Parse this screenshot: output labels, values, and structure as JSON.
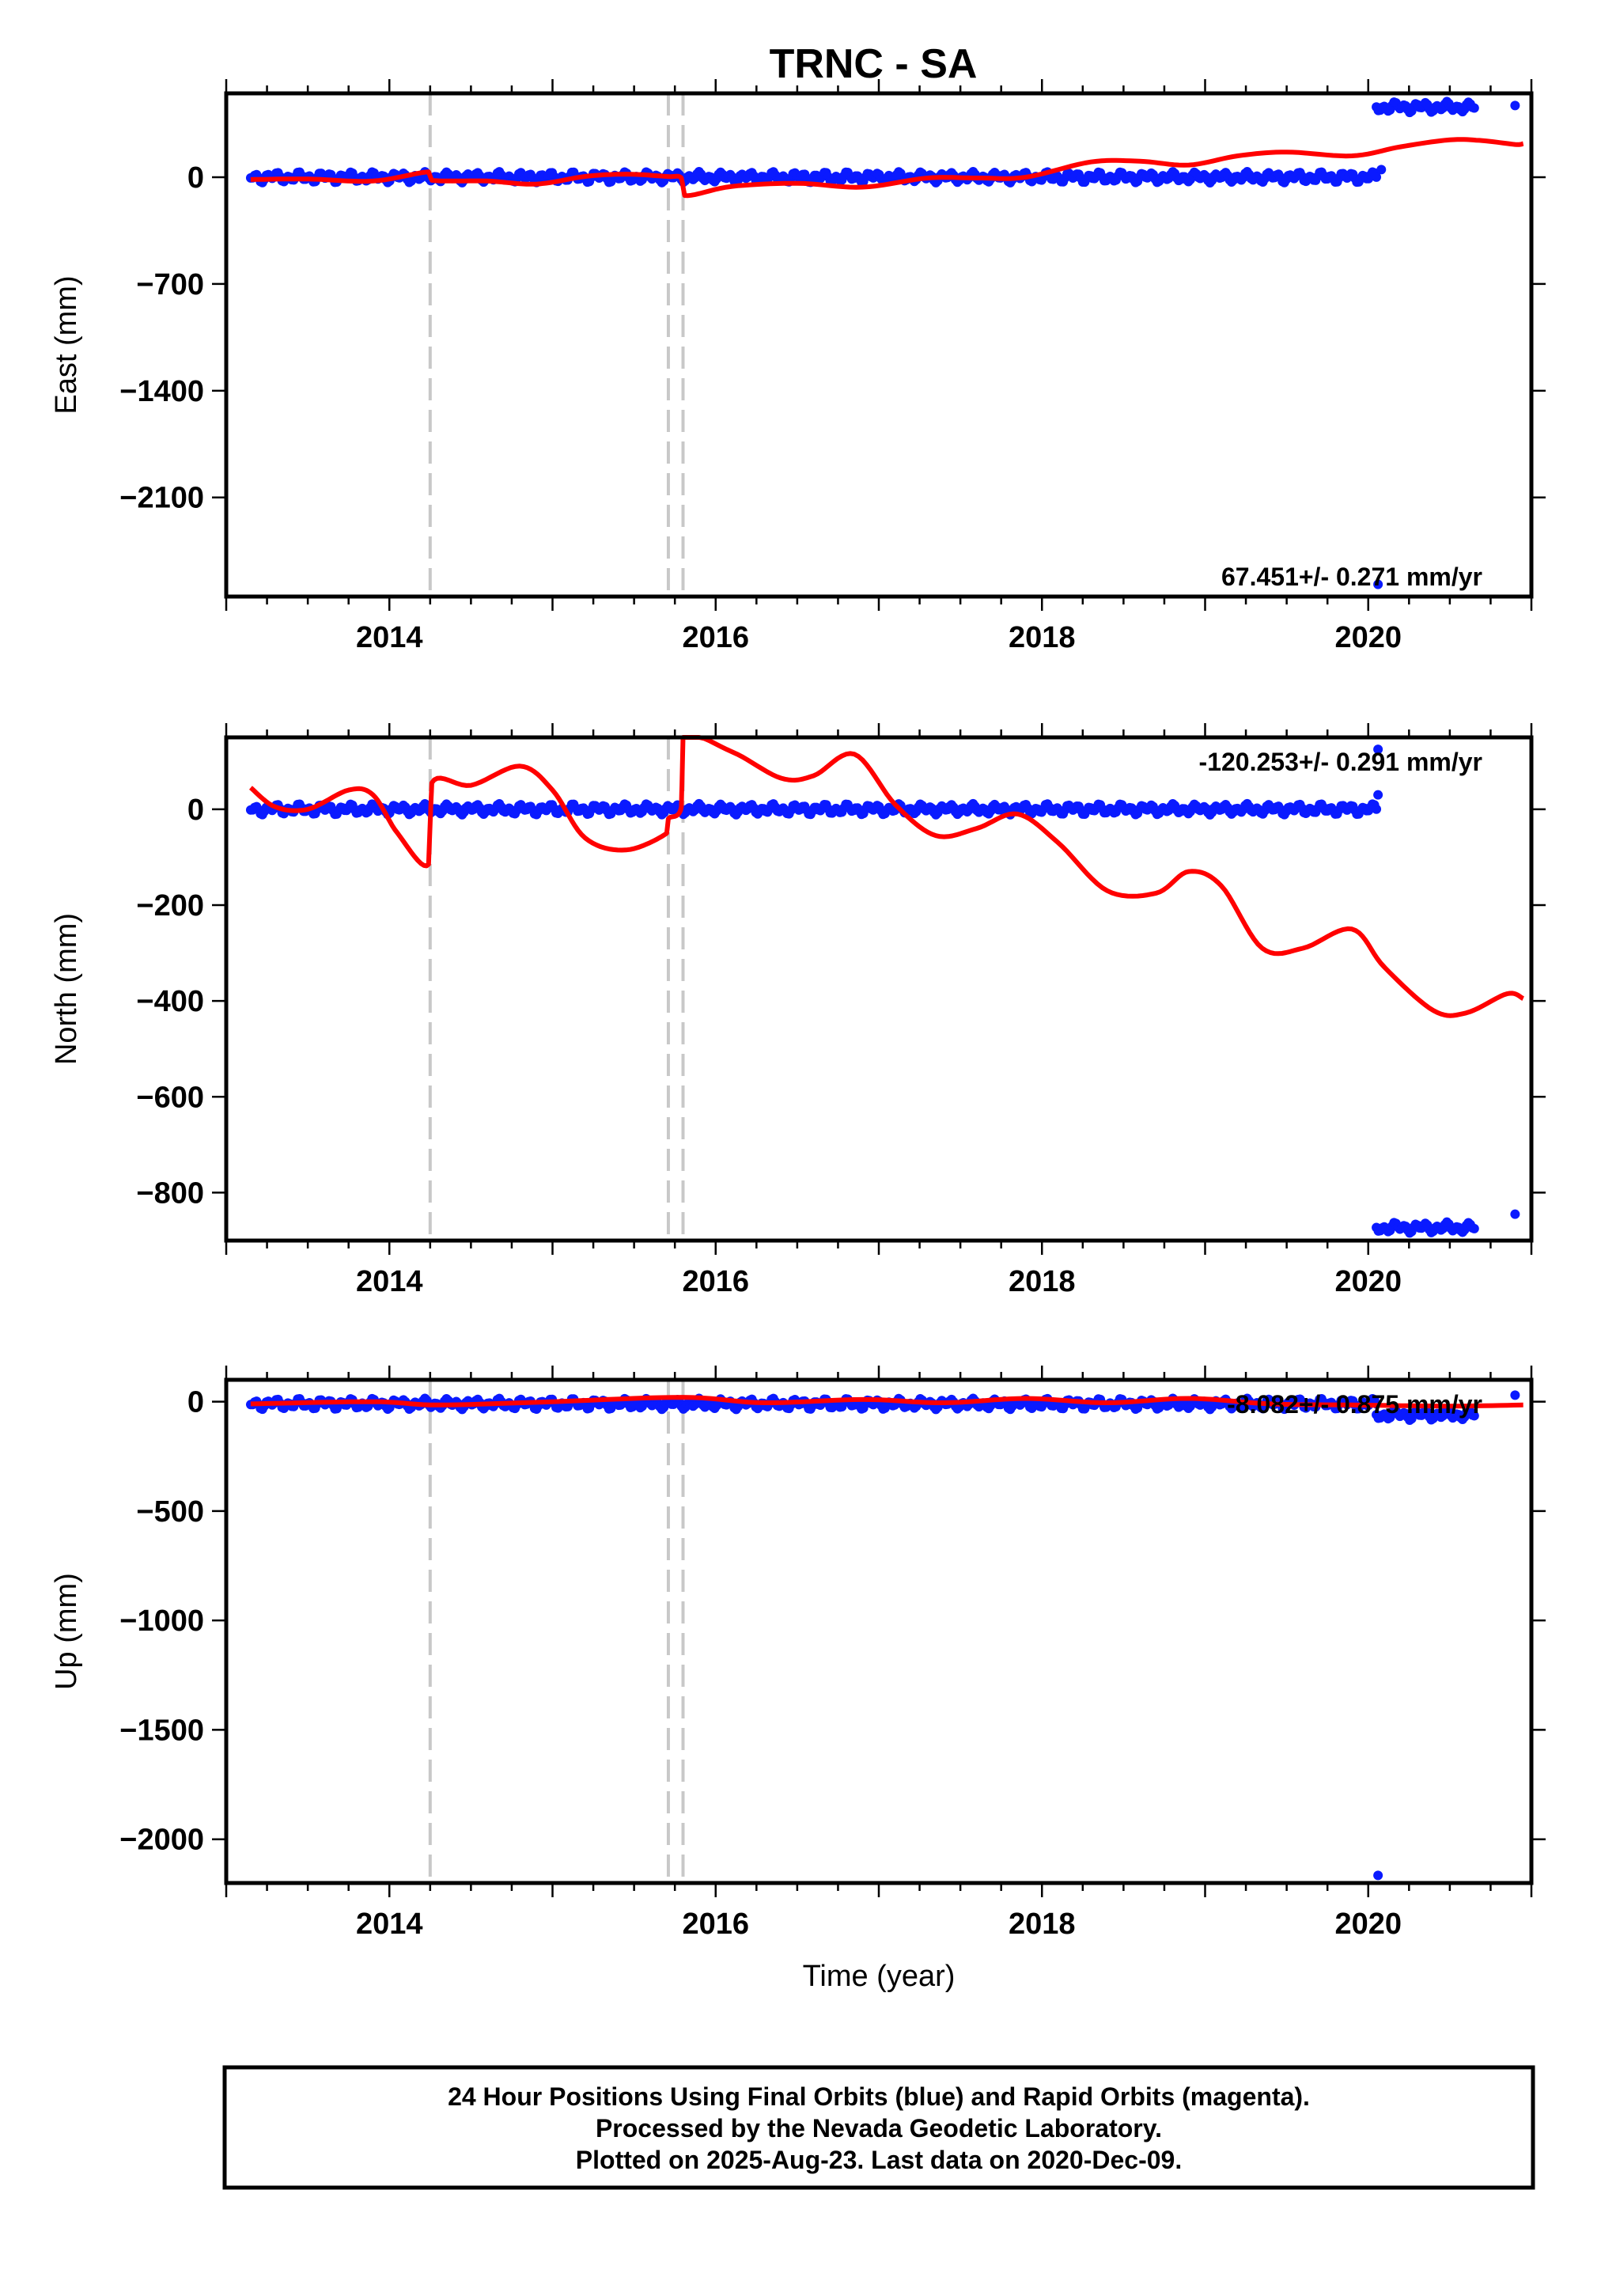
{
  "title": "TRNC - SA",
  "footer": {
    "line1": "24 Hour Positions Using Final Orbits (blue) and Rapid Orbits (magenta).",
    "line2": "Processed by the Nevada Geodetic Laboratory.",
    "line3": "Plotted on 2025-Aug-23. Last data on 2020-Dec-09."
  },
  "colors": {
    "data": "#0a1aff",
    "model": "#ff0000",
    "offset_lines": "#c8c8c8",
    "frame": "#000000"
  },
  "chart_data": [
    {
      "type": "scatter",
      "ylabel": "East (mm)",
      "xlabel": "",
      "xlim": [
        2013.0,
        2021.0
      ],
      "ylim": [
        -2750,
        550
      ],
      "xticks": [
        2014,
        2016,
        2018,
        2020
      ],
      "yticks": [
        0,
        -700,
        -1400,
        -2100
      ],
      "rate_label": "67.451+/- 0.271 mm/yr",
      "offsets": [
        2014.25,
        2015.71,
        2015.8
      ],
      "data_segments": [
        {
          "x0": 2013.15,
          "x1": 2020.05,
          "y": 0,
          "note": ""
        },
        {
          "x0": 2020.05,
          "x1": 2020.65,
          "y": 460,
          "note": ""
        }
      ],
      "data_points": [
        [
          2020.08,
          50
        ],
        [
          2020.9,
          470
        ],
        [
          2020.06,
          -2670
        ]
      ],
      "model": [
        [
          2013.15,
          -15
        ],
        [
          2013.5,
          -12
        ],
        [
          2013.9,
          -25
        ],
        [
          2014.24,
          35
        ],
        [
          2014.26,
          -20
        ],
        [
          2014.6,
          -25
        ],
        [
          2014.9,
          -45
        ],
        [
          2015.2,
          5
        ],
        [
          2015.45,
          20
        ],
        [
          2015.7,
          5
        ],
        [
          2015.79,
          -5
        ],
        [
          2015.81,
          -120
        ],
        [
          2016.1,
          -60
        ],
        [
          2016.5,
          -40
        ],
        [
          2016.9,
          -65
        ],
        [
          2017.3,
          -5
        ],
        [
          2017.6,
          -5
        ],
        [
          2017.9,
          0
        ],
        [
          2018.3,
          100
        ],
        [
          2018.6,
          105
        ],
        [
          2018.9,
          80
        ],
        [
          2019.2,
          140
        ],
        [
          2019.5,
          165
        ],
        [
          2019.9,
          140
        ],
        [
          2020.2,
          200
        ],
        [
          2020.5,
          245
        ],
        [
          2020.7,
          240
        ],
        [
          2020.9,
          215
        ],
        [
          2020.95,
          220
        ]
      ]
    },
    {
      "type": "scatter",
      "ylabel": "North (mm)",
      "xlabel": "",
      "xlim": [
        2013.0,
        2021.0
      ],
      "ylim": [
        -900,
        150
      ],
      "xticks": [
        2014,
        2016,
        2018,
        2020
      ],
      "yticks": [
        0,
        -200,
        -400,
        -600,
        -800
      ],
      "rate_label": "-120.253+/- 0.291 mm/yr",
      "offsets": [
        2014.25,
        2015.71,
        2015.8
      ],
      "data_segments": [
        {
          "x0": 2013.15,
          "x1": 2020.05,
          "y": 0,
          "note": ""
        },
        {
          "x0": 2020.05,
          "x1": 2020.65,
          "y": -873,
          "note": ""
        }
      ],
      "data_points": [
        [
          2020.06,
          125
        ],
        [
          2020.06,
          30
        ],
        [
          2020.9,
          -845
        ]
      ],
      "model": [
        [
          2013.15,
          45
        ],
        [
          2013.3,
          5
        ],
        [
          2013.5,
          0
        ],
        [
          2013.75,
          40
        ],
        [
          2013.9,
          30
        ],
        [
          2014.05,
          -50
        ],
        [
          2014.24,
          -115
        ],
        [
          2014.26,
          55
        ],
        [
          2014.5,
          50
        ],
        [
          2014.8,
          90
        ],
        [
          2015.0,
          40
        ],
        [
          2015.2,
          -60
        ],
        [
          2015.45,
          -85
        ],
        [
          2015.7,
          -50
        ],
        [
          2015.71,
          -20
        ],
        [
          2015.79,
          5
        ],
        [
          2015.8,
          150
        ],
        [
          2016.1,
          120
        ],
        [
          2016.4,
          65
        ],
        [
          2016.6,
          70
        ],
        [
          2016.85,
          115
        ],
        [
          2017.1,
          10
        ],
        [
          2017.35,
          -55
        ],
        [
          2017.6,
          -40
        ],
        [
          2017.85,
          -10
        ],
        [
          2018.1,
          -70
        ],
        [
          2018.4,
          -170
        ],
        [
          2018.7,
          -175
        ],
        [
          2018.9,
          -130
        ],
        [
          2019.1,
          -160
        ],
        [
          2019.35,
          -290
        ],
        [
          2019.6,
          -290
        ],
        [
          2019.9,
          -250
        ],
        [
          2020.1,
          -330
        ],
        [
          2020.4,
          -420
        ],
        [
          2020.6,
          -425
        ],
        [
          2020.85,
          -385
        ],
        [
          2020.95,
          -395
        ]
      ]
    },
    {
      "type": "scatter",
      "ylabel": "Up (mm)",
      "xlabel": "Time (year)",
      "xlim": [
        2013.0,
        2021.0
      ],
      "ylim": [
        -2200,
        100
      ],
      "xticks": [
        2014,
        2016,
        2018,
        2020
      ],
      "yticks": [
        0,
        -500,
        -1000,
        -1500,
        -2000
      ],
      "rate_label": "-8.082+/- 0.875 mm/yr",
      "offsets": [
        2014.25,
        2015.71,
        2015.8
      ],
      "data_segments": [
        {
          "x0": 2013.15,
          "x1": 2020.05,
          "y": -10,
          "note": ""
        },
        {
          "x0": 2020.05,
          "x1": 2020.65,
          "y": -60,
          "note": ""
        }
      ],
      "data_points": [
        [
          2020.06,
          -2165
        ],
        [
          2020.9,
          30
        ]
      ],
      "model": [
        [
          2013.15,
          -10
        ],
        [
          2013.9,
          0
        ],
        [
          2014.3,
          -15
        ],
        [
          2015.0,
          0
        ],
        [
          2015.8,
          20
        ],
        [
          2016.3,
          -5
        ],
        [
          2016.9,
          10
        ],
        [
          2017.4,
          -5
        ],
        [
          2017.9,
          15
        ],
        [
          2018.4,
          -5
        ],
        [
          2018.9,
          15
        ],
        [
          2019.4,
          -10
        ],
        [
          2019.9,
          -15
        ],
        [
          2020.5,
          -20
        ],
        [
          2020.95,
          -15
        ]
      ]
    }
  ]
}
